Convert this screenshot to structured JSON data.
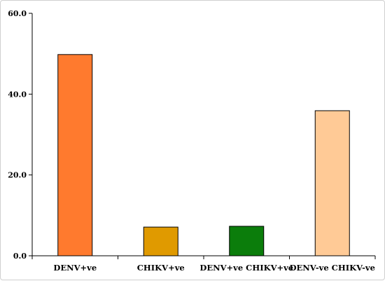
{
  "chart_data": {
    "type": "bar",
    "categories": [
      "DENV+ve",
      "CHIKV+ve",
      "DENV+ve CHIKV+ve",
      "DENV-ve CHIKV-ve"
    ],
    "values": [
      49.8,
      7.1,
      7.3,
      35.9
    ],
    "colors": [
      "#FF7A2E",
      "#E09A00",
      "#0B7D0B",
      "#FFCA96"
    ],
    "ylim": [
      0,
      60
    ],
    "yticks": [
      0,
      20,
      40,
      60
    ],
    "ytick_labels": [
      "0.0",
      "20.0",
      "40.0",
      "60.0"
    ],
    "title": "",
    "xlabel": "",
    "ylabel": "",
    "grid": false,
    "legend": "none"
  }
}
